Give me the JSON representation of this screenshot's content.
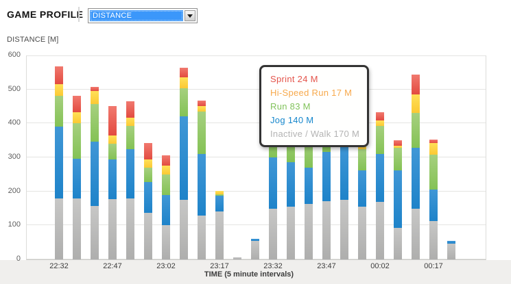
{
  "header": {
    "title": "GAME PROFILE",
    "profile_dropdown": {
      "selected": "DISTANCE"
    }
  },
  "chart_data": {
    "type": "bar",
    "stacked": true,
    "title": "DISTANCE [M]",
    "xlabel": "TIME (5 minute intervals)",
    "ylabel": "DISTANCE [M]",
    "ylim": [
      0,
      600
    ],
    "yticks": [
      0,
      100,
      200,
      300,
      400,
      500,
      600
    ],
    "grid": true,
    "legend_position": "tooltip-only",
    "series_order": [
      "walk",
      "jog",
      "run",
      "hispeed",
      "sprint"
    ],
    "series_meta": {
      "walk": {
        "label": "Inactive / Walk",
        "color": "#aeaead",
        "color_top": "#c7c7c6"
      },
      "jog": {
        "label": "Jog",
        "color": "#1e83c9",
        "color_top": "#4097d6"
      },
      "run": {
        "label": "Run",
        "color": "#84c255",
        "color_top": "#a6d07f"
      },
      "hispeed": {
        "label": "Hi-Speed Run",
        "color": "#fcc934",
        "color_top": "#fee058"
      },
      "sprint": {
        "label": "Sprint",
        "color": "#e24b40",
        "color_top": "#f1796f"
      }
    },
    "bars": [
      {
        "time": "22:32",
        "tick": "22:32",
        "walk": 180,
        "jog": 212,
        "run": 91,
        "hispeed": 34,
        "sprint": 52
      },
      {
        "time": "22:37",
        "tick": "",
        "walk": 180,
        "jog": 117,
        "run": 105,
        "hispeed": 33,
        "sprint": 48
      },
      {
        "time": "22:42",
        "tick": "",
        "walk": 157,
        "jog": 189,
        "run": 111,
        "hispeed": 38,
        "sprint": 12
      },
      {
        "time": "22:47",
        "tick": "22:47",
        "walk": 178,
        "jog": 116,
        "run": 47,
        "hispeed": 24,
        "sprint": 87
      },
      {
        "time": "22:52",
        "tick": "",
        "walk": 180,
        "jog": 144,
        "run": 68,
        "hispeed": 25,
        "sprint": 49
      },
      {
        "time": "22:57",
        "tick": "",
        "walk": 137,
        "jog": 91,
        "run": 42,
        "hispeed": 24,
        "sprint": 48
      },
      {
        "time": "23:02",
        "tick": "23:02",
        "walk": 100,
        "jog": 88,
        "run": 60,
        "hispeed": 26,
        "sprint": 30
      },
      {
        "time": "23:07",
        "tick": "",
        "walk": 175,
        "jog": 246,
        "run": 82,
        "hispeed": 32,
        "sprint": 28
      },
      {
        "time": "23:12",
        "tick": "",
        "walk": 128,
        "jog": 182,
        "run": 124,
        "hispeed": 17,
        "sprint": 17
      },
      {
        "time": "23:17",
        "tick": "23:17",
        "walk": 140,
        "jog": 47,
        "run": 5,
        "hispeed": 10,
        "sprint": 0
      },
      {
        "time": "23:22",
        "tick": "",
        "walk": 7,
        "jog": 0,
        "run": 0,
        "hispeed": 0,
        "sprint": 0
      },
      {
        "time": "23:27",
        "tick": "",
        "walk": 55,
        "jog": 7,
        "run": 0,
        "hispeed": 0,
        "sprint": 0
      },
      {
        "time": "23:32",
        "tick": "23:32",
        "walk": 149,
        "jog": 151,
        "run": 85,
        "hispeed": 20,
        "sprint": 26
      },
      {
        "time": "23:37",
        "tick": "",
        "walk": 156,
        "jog": 131,
        "run": 95,
        "hispeed": 25,
        "sprint": 30
      },
      {
        "time": "23:42",
        "tick": "",
        "walk": 164,
        "jog": 106,
        "run": 92,
        "hispeed": 20,
        "sprint": 24
      },
      {
        "time": "23:47",
        "tick": "23:47",
        "walk": 172,
        "jog": 145,
        "run": 83,
        "hispeed": 20,
        "sprint": 24
      },
      {
        "time": "23:52",
        "tick": "",
        "walk": 176,
        "jog": 165,
        "run": 62,
        "hispeed": 15,
        "sprint": 20
      },
      {
        "time": "23:57",
        "tick": "",
        "walk": 156,
        "jog": 107,
        "run": 62,
        "hispeed": 13,
        "sprint": 43
      },
      {
        "time": "00:02",
        "tick": "00:02",
        "walk": 170,
        "jog": 140,
        "run": 83,
        "hispeed": 17,
        "sprint": 24
      },
      {
        "time": "00:07",
        "tick": "",
        "walk": 93,
        "jog": 170,
        "run": 67,
        "hispeed": 7,
        "sprint": 17
      },
      {
        "time": "00:12",
        "tick": "",
        "walk": 149,
        "jog": 179,
        "run": 102,
        "hispeed": 54,
        "sprint": 58
      },
      {
        "time": "00:17",
        "tick": "00:17",
        "walk": 113,
        "jog": 92,
        "run": 103,
        "hispeed": 35,
        "sprint": 11
      },
      {
        "time": "00:22",
        "tick": "",
        "walk": 46,
        "jog": 8,
        "run": 0,
        "hispeed": 0,
        "sprint": 0
      }
    ]
  },
  "tooltip": {
    "for_time": "00:02",
    "lines": [
      {
        "series": "sprint",
        "text": "Sprint 24 M",
        "color": "#e4544b"
      },
      {
        "series": "hispeed",
        "text": "Hi-Speed Run 17 M",
        "color": "#f7a94c"
      },
      {
        "series": "run",
        "text": "Run 83 M",
        "color": "#82c35c"
      },
      {
        "series": "jog",
        "text": "Jog 140 M",
        "color": "#1687cc"
      },
      {
        "series": "walk",
        "text": "Inactive / Walk 170 M",
        "color": "#b3b3b3"
      }
    ]
  }
}
